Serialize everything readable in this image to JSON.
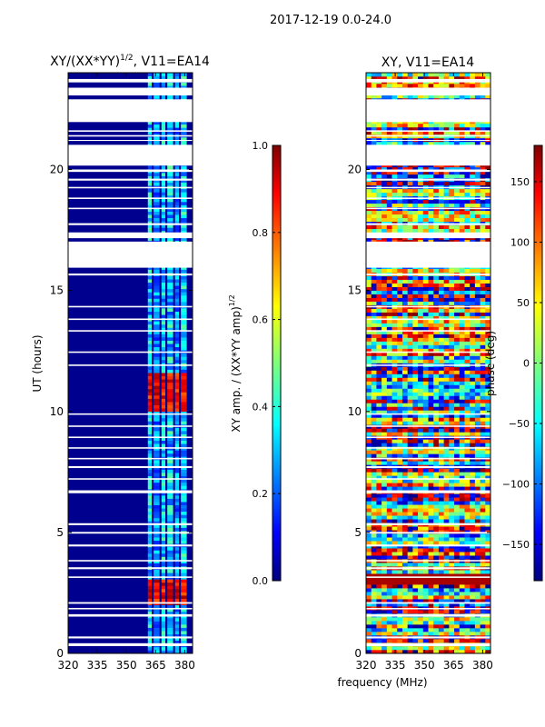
{
  "figure": {
    "suptitle": "2017-12-19 0.0-24.0",
    "shared_xlabel": "frequency (MHz)"
  },
  "chart_data": [
    {
      "type": "heatmap",
      "title_base": "XY/(XX*YY)",
      "title_exp": "1/2",
      "title_suffix": ", V11=EA14",
      "xlabel": "frequency (MHz)",
      "ylabel": "UT (hours)",
      "xlim": [
        320,
        384
      ],
      "ylim": [
        0,
        24
      ],
      "xticks": [
        320,
        335,
        350,
        365,
        380
      ],
      "yticks": [
        0,
        5,
        10,
        15,
        20
      ],
      "colormap": "jet",
      "colorbar": {
        "label_base": "XY amp. / (XX*YY amp)",
        "label_exp": "1/2",
        "range": [
          0.0,
          1.0
        ],
        "ticks": [
          "0.0",
          "0.2",
          "0.4",
          "0.6",
          "0.8",
          "1.0"
        ]
      },
      "description": "Mostly ~0 (dark blue) across 320-360 MHz; elevated values (0.2-0.6) in channel bands at 361-381 MHz; high values (0.8-1.0) near UT 2-3 h and 10-11 h; white gaps are flagged data."
    },
    {
      "type": "heatmap",
      "title": "XY, V11=EA14",
      "xlabel": "frequency (MHz)",
      "ylabel": "",
      "xlim": [
        320,
        384
      ],
      "ylim": [
        0,
        24
      ],
      "xticks": [
        320,
        335,
        350,
        365,
        380
      ],
      "yticks": [
        0,
        5,
        10,
        15,
        20
      ],
      "colormap": "jet",
      "colorbar": {
        "label": "phase (deg)",
        "range": [
          -180,
          180
        ],
        "ticks": [
          "150",
          "100",
          "50",
          "0",
          "−50",
          "−100",
          "−150"
        ]
      },
      "description": "Phase in degrees spanning -180 to 180, noisy structure with flagged white gaps matching the left panel."
    }
  ],
  "flagged_gaps_hours": [
    [
      0.3,
      0.42
    ],
    [
      0.62,
      0.7
    ],
    [
      1.52,
      1.62
    ],
    [
      1.82,
      1.88
    ],
    [
      2.05,
      2.12
    ],
    [
      3.12,
      3.18
    ],
    [
      3.48,
      3.56
    ],
    [
      3.8,
      3.86
    ],
    [
      4.42,
      4.5
    ],
    [
      4.95,
      5.02
    ],
    [
      5.3,
      5.38
    ],
    [
      6.62,
      6.74
    ],
    [
      7.18,
      7.24
    ],
    [
      7.66,
      7.74
    ],
    [
      8.02,
      8.08
    ],
    [
      8.46,
      8.52
    ],
    [
      8.9,
      8.96
    ],
    [
      9.36,
      9.42
    ],
    [
      9.86,
      9.92
    ],
    [
      11.88,
      11.94
    ],
    [
      12.42,
      12.48
    ],
    [
      13.3,
      13.36
    ],
    [
      13.78,
      13.84
    ],
    [
      14.3,
      14.36
    ],
    [
      15.62,
      15.7
    ],
    [
      15.94,
      17.02
    ],
    [
      17.16,
      17.4
    ],
    [
      17.7,
      17.78
    ],
    [
      18.36,
      18.42
    ],
    [
      18.78,
      18.84
    ],
    [
      19.22,
      19.28
    ],
    [
      19.54,
      19.62
    ],
    [
      19.9,
      20.0
    ],
    [
      20.16,
      21.02
    ],
    [
      21.18,
      21.22
    ],
    [
      21.36,
      21.42
    ],
    [
      21.56,
      21.62
    ],
    [
      21.96,
      22.9
    ],
    [
      23.06,
      23.38
    ],
    [
      23.6,
      23.74
    ]
  ]
}
